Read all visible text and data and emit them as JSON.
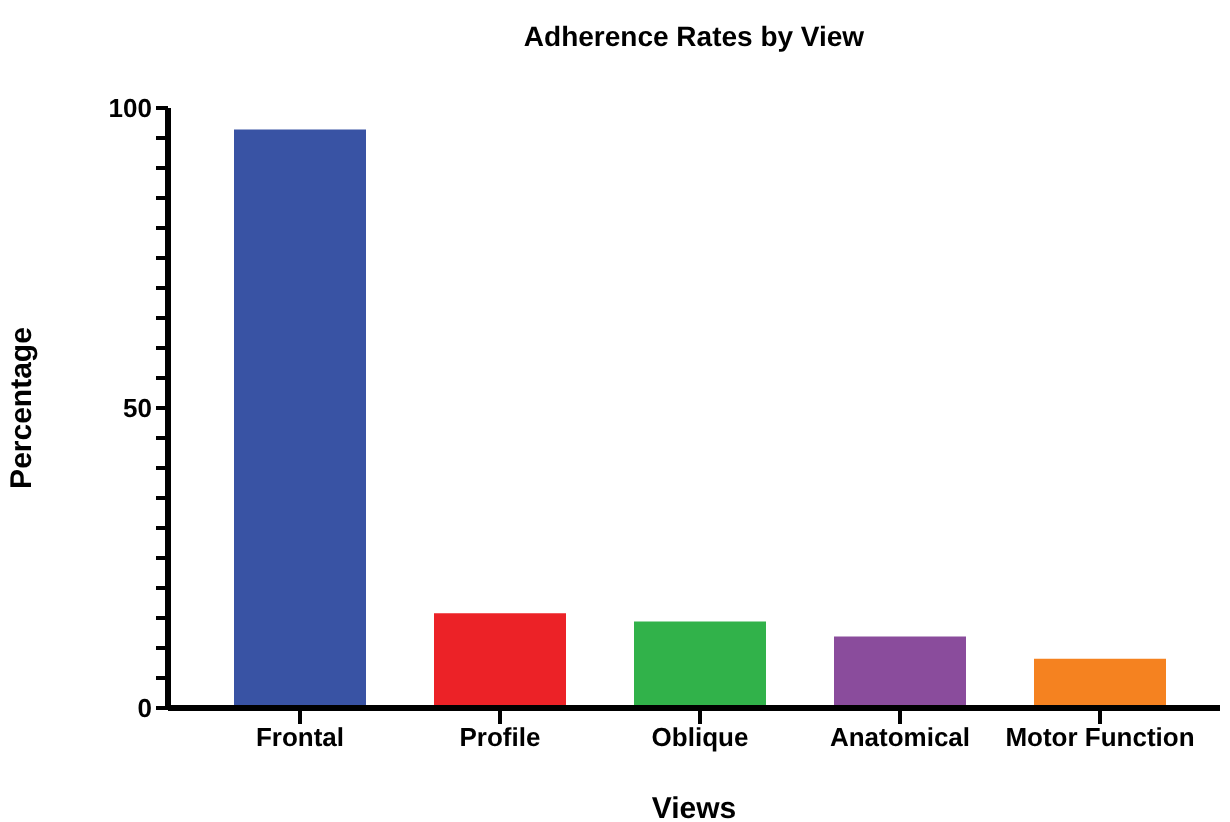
{
  "chart_data": {
    "type": "bar",
    "title": "Adherence Rates by View",
    "xlabel": "Views",
    "ylabel": "Percentage",
    "categories": [
      "Frontal",
      "Profile",
      "Oblique",
      "Anatomical",
      "Motor Function"
    ],
    "values": [
      96.4,
      15.8,
      14.4,
      11.9,
      8.2
    ],
    "colors": [
      "#3953a4",
      "#ec2227",
      "#31b24a",
      "#8a4c9c",
      "#f58220"
    ],
    "ylim": [
      0,
      100
    ],
    "yticks": [
      0,
      {
        "value": 5,
        "label": null
      },
      {
        "value": 10,
        "label": null
      },
      {
        "value": 15,
        "label": null
      },
      {
        "value": 20,
        "label": null
      },
      {
        "value": 25,
        "label": null
      },
      {
        "value": 30,
        "label": null
      },
      {
        "value": 35,
        "label": null
      },
      {
        "value": 40,
        "label": null
      },
      {
        "value": 45,
        "label": null
      },
      50,
      {
        "value": 55,
        "label": null
      },
      {
        "value": 60,
        "label": null
      },
      {
        "value": 65,
        "label": null
      },
      {
        "value": 70,
        "label": null
      },
      {
        "value": 75,
        "label": null
      },
      {
        "value": 80,
        "label": null
      },
      {
        "value": 85,
        "label": null
      },
      {
        "value": 90,
        "label": null
      },
      {
        "value": 95,
        "label": null
      },
      100
    ],
    "grid": false,
    "legend": false
  }
}
